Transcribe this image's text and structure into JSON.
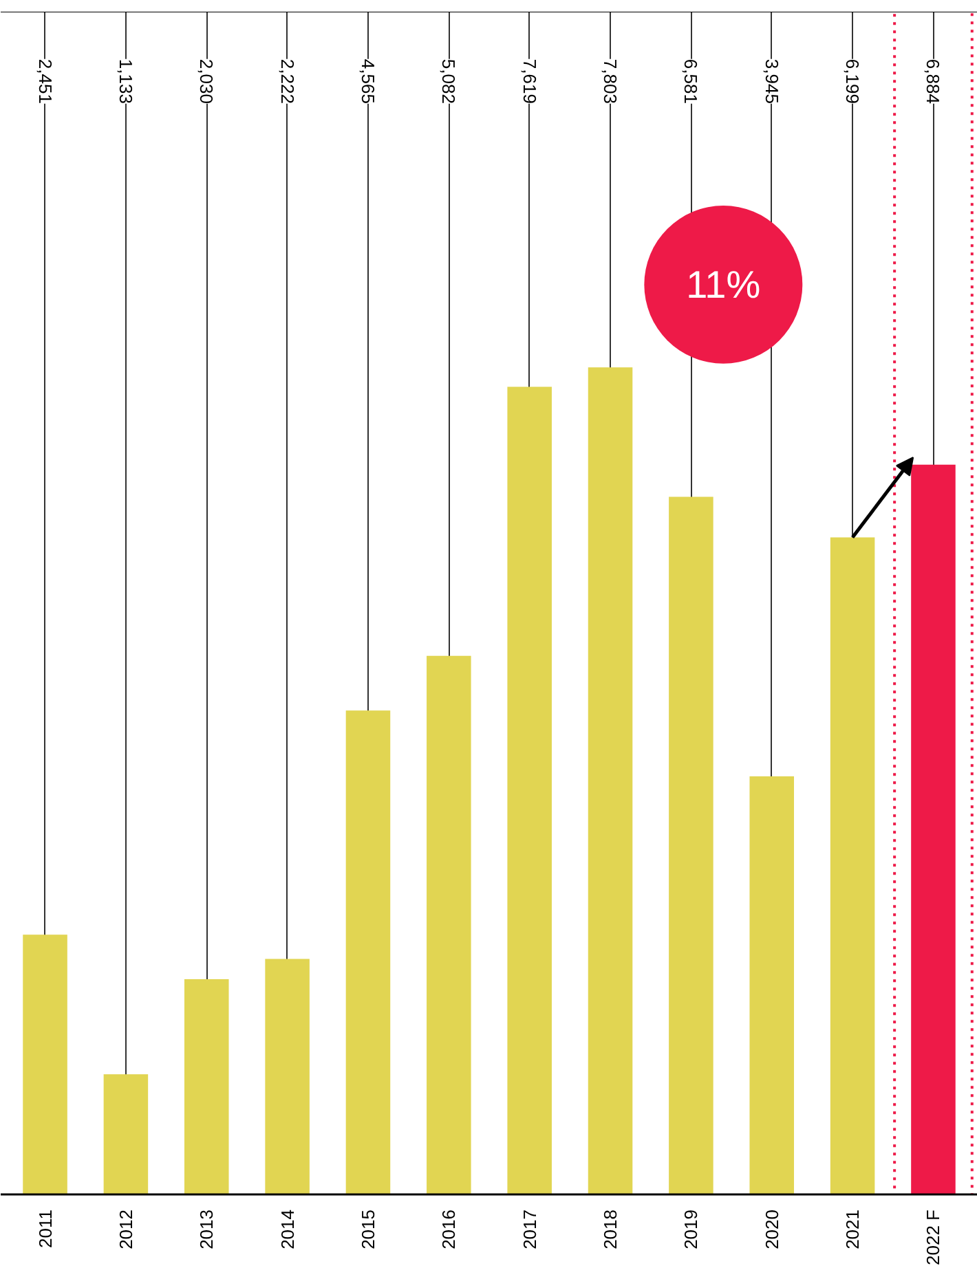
{
  "chart_data": {
    "type": "bar",
    "categories": [
      "2011",
      "2012",
      "2013",
      "2014",
      "2015",
      "2016",
      "2017",
      "2018",
      "2019",
      "2020",
      "2021",
      "2022 F"
    ],
    "values": [
      2451,
      1133,
      2030,
      2222,
      4565,
      5082,
      7619,
      7803,
      6581,
      3945,
      6199,
      6884
    ],
    "value_labels": [
      "2,451",
      "1,133",
      "2,030",
      "2,222",
      "4,565",
      "5,082",
      "7,619",
      "7,803",
      "6,581",
      "3,945",
      "6,199",
      "6,884"
    ],
    "colors": [
      "#e1d552",
      "#e1d552",
      "#e1d552",
      "#e1d552",
      "#e1d552",
      "#e1d552",
      "#e1d552",
      "#e1d552",
      "#e1d552",
      "#e1d552",
      "#e1d552",
      "#ee1a48"
    ],
    "grid": "x",
    "annotations": [
      "11%"
    ]
  }
}
